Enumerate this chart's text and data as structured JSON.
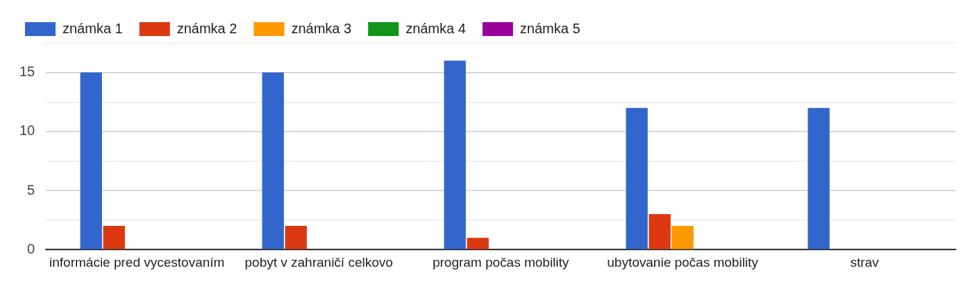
{
  "chart_data": {
    "type": "bar",
    "categories": [
      "informácie pred vycestovaním",
      "pobyt v zahraničí celkovo",
      "program počas mobility",
      "ubytovanie počas mobility",
      "strav"
    ],
    "series": [
      {
        "name": "známka 1",
        "color": "#3366cc",
        "values": [
          15,
          15,
          16,
          12,
          12
        ]
      },
      {
        "name": "známka 2",
        "color": "#dc3912",
        "values": [
          2,
          2,
          1,
          3,
          null
        ]
      },
      {
        "name": "známka 3",
        "color": "#ff9900",
        "values": [
          0,
          0,
          0,
          2,
          null
        ]
      },
      {
        "name": "známka 4",
        "color": "#109618",
        "values": [
          0,
          0,
          0,
          0,
          null
        ]
      },
      {
        "name": "známka 5",
        "color": "#990099",
        "values": [
          0,
          0,
          0,
          0,
          null
        ]
      }
    ],
    "ylim": [
      0,
      17.5
    ],
    "yticks": [
      0,
      {
        "value": 2.5,
        "label": null
      },
      5,
      {
        "value": 7.5,
        "label": null
      },
      10,
      {
        "value": 12.5,
        "label": null
      },
      15,
      {
        "value": 17.5,
        "label": null
      }
    ],
    "grid": "y",
    "legend": "top left"
  }
}
